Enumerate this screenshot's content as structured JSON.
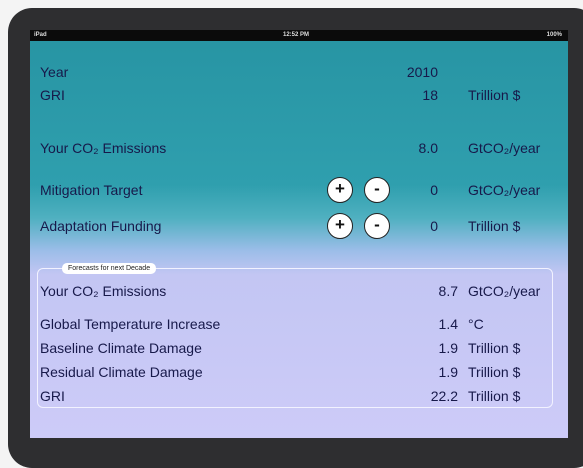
{
  "status_bar": {
    "carrier": "iPad",
    "time": "12:52 PM",
    "battery": "100%"
  },
  "rows": [
    {
      "label": "Year",
      "value": "2010"
    },
    {
      "label": "GRI",
      "value": "18",
      "unit": "Trillion $"
    },
    {
      "label": "Your CO₂ Emissions",
      "value": "8.0",
      "unit": "GtCO₂/year"
    },
    {
      "label": "Mitigation Target",
      "value": "0",
      "unit": "GtCO₂/year",
      "buttons": [
        "+",
        "-"
      ]
    },
    {
      "label": "Adaptation Funding",
      "value": "0",
      "unit": "Trillion $",
      "buttons": [
        "+",
        "-"
      ]
    }
  ],
  "forecast": {
    "title": "Forecasts for next Decade",
    "rows": [
      {
        "label": "Your CO₂ Emissions",
        "value": "8.7",
        "unit": "GtCO₂/year"
      },
      {
        "label": "Global Temperature Increase",
        "value": "1.4",
        "unit": "°C"
      },
      {
        "label": "Baseline Climate Damage",
        "value": "1.9",
        "unit": "Trillion $"
      },
      {
        "label": "Residual Climate Damage",
        "value": "1.9",
        "unit": "Trillion $"
      },
      {
        "label": "GRI",
        "value": "22.2",
        "unit": "Trillion $"
      }
    ]
  }
}
